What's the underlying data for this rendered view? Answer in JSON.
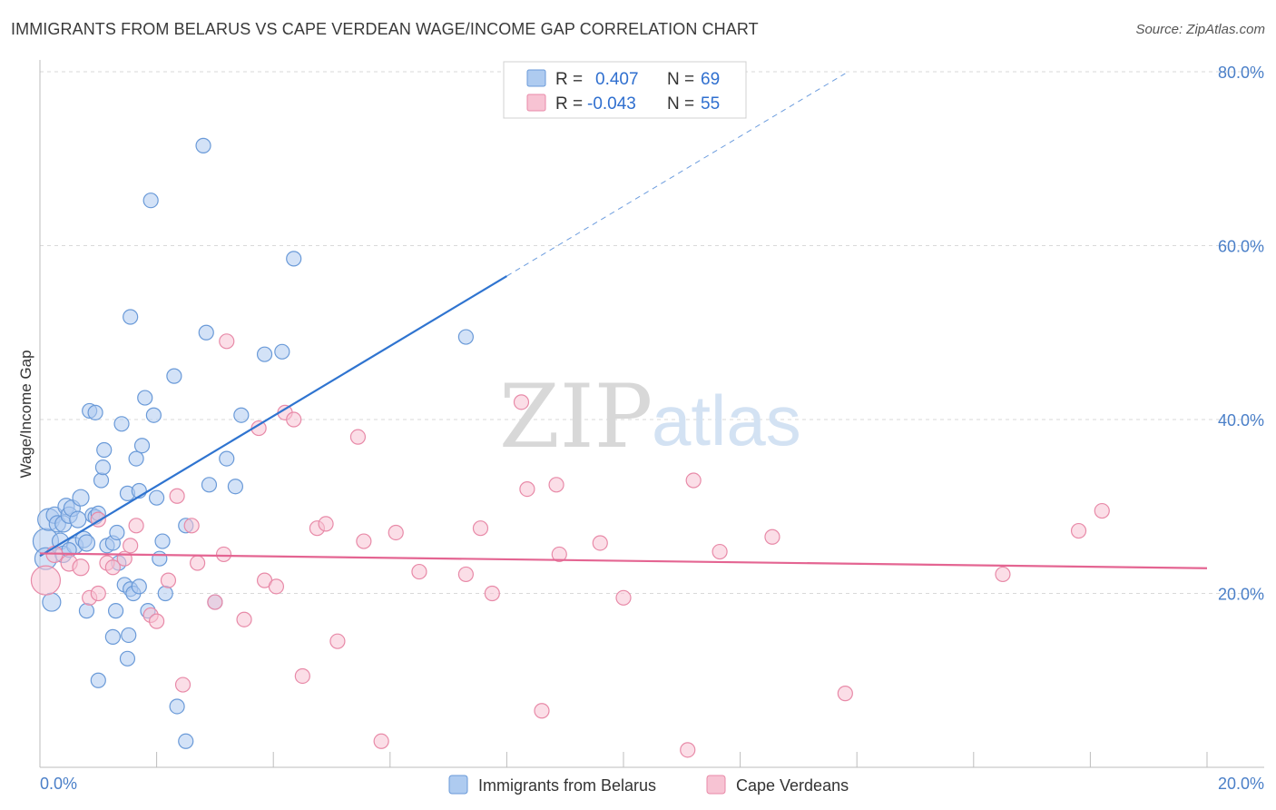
{
  "title": "IMMIGRANTS FROM BELARUS VS CAPE VERDEAN WAGE/INCOME GAP CORRELATION CHART",
  "source": "Source: ZipAtlas.com",
  "watermark": {
    "zip": "ZIP",
    "atlas": "atlas"
  },
  "colors": {
    "blue_fill": "#aecbf0",
    "blue_stroke": "#6a9ad8",
    "blue_line": "#2f74d0",
    "pink_fill": "#f7c3d3",
    "pink_stroke": "#e88aa8",
    "pink_line": "#e46592",
    "grid": "#d9d9d9",
    "tick_text": "#4a7fc8"
  },
  "legend": {
    "rows": [
      {
        "r_label": "R =",
        "r_value": "0.407",
        "n_label": "N =",
        "n_value": "69"
      },
      {
        "r_label": "R =",
        "r_value": "-0.043",
        "n_label": "N =",
        "n_value": "55"
      }
    ]
  },
  "chart_data": {
    "type": "scatter",
    "xlabel": "",
    "ylabel": "Wage/Income Gap",
    "xlim": [
      0,
      20
    ],
    "ylim": [
      0,
      80
    ],
    "x_tick_labels": {
      "left": "0.0%",
      "right": "20.0%"
    },
    "y_ticks": [
      {
        "value": 20,
        "label": "20.0%"
      },
      {
        "value": 40,
        "label": "40.0%"
      },
      {
        "value": 60,
        "label": "60.0%"
      },
      {
        "value": 80,
        "label": "80.0%"
      }
    ],
    "grid": true,
    "legend_position": "top-center",
    "series": [
      {
        "name": "Immigrants from Belarus",
        "color": "#aecbf0",
        "trend": {
          "x0": 0,
          "y0": 24.3,
          "x1": 8.0,
          "y1": 56.5,
          "dash_to_x": 13.8,
          "dash_to_y": 79.8
        },
        "points": [
          [
            0.1,
            26.0,
            14
          ],
          [
            0.1,
            24.0,
            12
          ],
          [
            0.15,
            28.5,
            12
          ],
          [
            0.2,
            19.0,
            10
          ],
          [
            0.25,
            29.0,
            9
          ],
          [
            0.3,
            28.0,
            9
          ],
          [
            0.35,
            26.0,
            9
          ],
          [
            0.4,
            24.5,
            9
          ],
          [
            0.4,
            28.0,
            9
          ],
          [
            0.45,
            30.0,
            9
          ],
          [
            0.5,
            29.0,
            9
          ],
          [
            0.55,
            29.8,
            9
          ],
          [
            0.6,
            25.5,
            9
          ],
          [
            0.65,
            28.5,
            9
          ],
          [
            0.7,
            31.0,
            9
          ],
          [
            0.75,
            26.2,
            9
          ],
          [
            0.8,
            25.8,
            9
          ],
          [
            0.8,
            18.0,
            8
          ],
          [
            0.85,
            41.0,
            8
          ],
          [
            0.9,
            29.0,
            8
          ],
          [
            0.95,
            28.8,
            8
          ],
          [
            0.95,
            40.8,
            8
          ],
          [
            1.0,
            29.2,
            8
          ],
          [
            1.05,
            33.0,
            8
          ],
          [
            1.08,
            34.5,
            8
          ],
          [
            1.1,
            36.5,
            8
          ],
          [
            1.15,
            25.5,
            8
          ],
          [
            1.25,
            25.8,
            8
          ],
          [
            1.25,
            15.0,
            8
          ],
          [
            1.3,
            18.0,
            8
          ],
          [
            1.32,
            27.0,
            8
          ],
          [
            1.35,
            23.5,
            8
          ],
          [
            1.4,
            39.5,
            8
          ],
          [
            1.45,
            21.0,
            8
          ],
          [
            1.5,
            12.5,
            8
          ],
          [
            1.5,
            31.5,
            8
          ],
          [
            1.52,
            15.2,
            8
          ],
          [
            1.55,
            20.5,
            8
          ],
          [
            1.55,
            51.8,
            8
          ],
          [
            1.6,
            20.0,
            8
          ],
          [
            1.65,
            35.5,
            8
          ],
          [
            1.7,
            20.8,
            8
          ],
          [
            1.7,
            31.8,
            8
          ],
          [
            1.75,
            37.0,
            8
          ],
          [
            1.8,
            42.5,
            8
          ],
          [
            1.85,
            18.0,
            8
          ],
          [
            1.9,
            65.2,
            8
          ],
          [
            1.95,
            40.5,
            8
          ],
          [
            2.0,
            31.0,
            8
          ],
          [
            2.05,
            24.0,
            8
          ],
          [
            2.1,
            26.0,
            8
          ],
          [
            2.15,
            20.0,
            8
          ],
          [
            2.3,
            45.0,
            8
          ],
          [
            2.35,
            7.0,
            8
          ],
          [
            2.5,
            27.8,
            8
          ],
          [
            2.5,
            3.0,
            8
          ],
          [
            2.8,
            71.5,
            8
          ],
          [
            2.85,
            50.0,
            8
          ],
          [
            2.9,
            32.5,
            8
          ],
          [
            3.0,
            19.0,
            8
          ],
          [
            3.2,
            35.5,
            8
          ],
          [
            3.35,
            32.3,
            8
          ],
          [
            3.45,
            40.5,
            8
          ],
          [
            3.85,
            47.5,
            8
          ],
          [
            4.15,
            47.8,
            8
          ],
          [
            4.35,
            58.5,
            8
          ],
          [
            7.3,
            49.5,
            8
          ],
          [
            1.0,
            10.0,
            8
          ],
          [
            0.5,
            25.0,
            8
          ]
        ]
      },
      {
        "name": "Cape Verdeans",
        "color": "#f7c3d3",
        "trend": {
          "x0": 0,
          "y0": 24.6,
          "x1": 20.0,
          "y1": 22.9
        },
        "points": [
          [
            0.1,
            21.5,
            16
          ],
          [
            0.25,
            24.5,
            9
          ],
          [
            0.5,
            23.5,
            9
          ],
          [
            0.7,
            23.0,
            9
          ],
          [
            0.85,
            19.5,
            8
          ],
          [
            1.0,
            28.5,
            8
          ],
          [
            1.15,
            23.5,
            8
          ],
          [
            1.25,
            23.0,
            8
          ],
          [
            1.45,
            24.0,
            8
          ],
          [
            1.55,
            25.5,
            8
          ],
          [
            1.65,
            27.8,
            8
          ],
          [
            1.9,
            17.5,
            8
          ],
          [
            2.0,
            16.8,
            8
          ],
          [
            2.2,
            21.5,
            8
          ],
          [
            2.35,
            31.2,
            8
          ],
          [
            2.45,
            9.5,
            8
          ],
          [
            2.6,
            27.8,
            8
          ],
          [
            2.7,
            23.5,
            8
          ],
          [
            3.0,
            19.0,
            8
          ],
          [
            3.15,
            24.5,
            8
          ],
          [
            3.2,
            49.0,
            8
          ],
          [
            3.5,
            17.0,
            8
          ],
          [
            3.75,
            39.0,
            8
          ],
          [
            3.85,
            21.5,
            8
          ],
          [
            4.05,
            20.8,
            8
          ],
          [
            4.2,
            40.8,
            8
          ],
          [
            4.35,
            40.0,
            8
          ],
          [
            4.5,
            10.5,
            8
          ],
          [
            4.75,
            27.5,
            8
          ],
          [
            4.9,
            28.0,
            8
          ],
          [
            5.1,
            14.5,
            8
          ],
          [
            5.45,
            38.0,
            8
          ],
          [
            5.55,
            26.0,
            8
          ],
          [
            5.85,
            3.0,
            8
          ],
          [
            6.1,
            27.0,
            8
          ],
          [
            6.5,
            22.5,
            8
          ],
          [
            7.3,
            22.2,
            8
          ],
          [
            7.55,
            27.5,
            8
          ],
          [
            7.75,
            20.0,
            8
          ],
          [
            8.25,
            42.0,
            8
          ],
          [
            8.35,
            32.0,
            8
          ],
          [
            8.6,
            6.5,
            8
          ],
          [
            8.85,
            32.5,
            8
          ],
          [
            8.9,
            24.5,
            8
          ],
          [
            9.6,
            25.8,
            8
          ],
          [
            10.0,
            19.5,
            8
          ],
          [
            11.1,
            2.0,
            8
          ],
          [
            11.2,
            33.0,
            8
          ],
          [
            11.65,
            24.8,
            8
          ],
          [
            12.55,
            26.5,
            8
          ],
          [
            13.8,
            8.5,
            8
          ],
          [
            16.5,
            22.2,
            8
          ],
          [
            17.8,
            27.2,
            8
          ],
          [
            18.2,
            29.5,
            8
          ],
          [
            1.0,
            20.0,
            8
          ]
        ]
      }
    ]
  }
}
